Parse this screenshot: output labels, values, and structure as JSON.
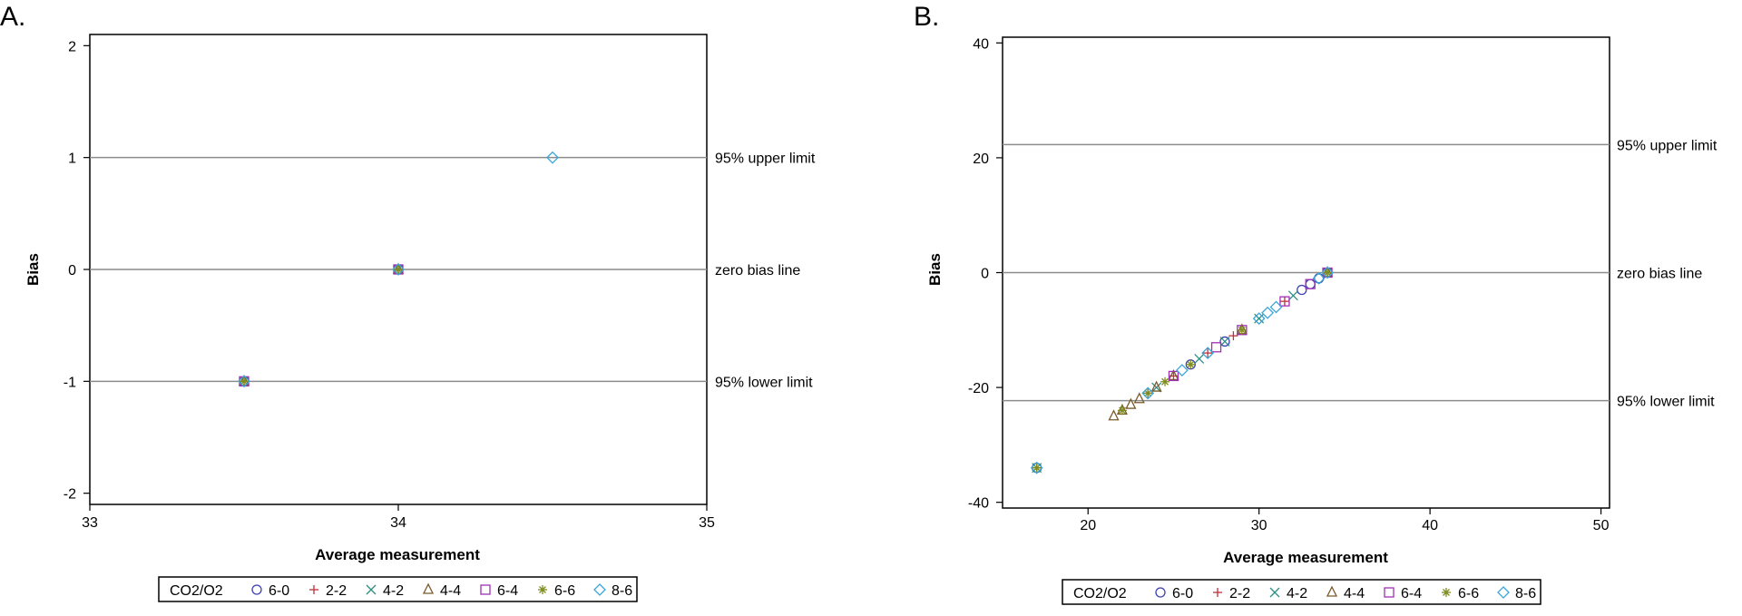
{
  "legend": {
    "title": "CO2/O2",
    "entries": [
      {
        "label": "6-0",
        "marker": "circle",
        "color": "#3b3fb2"
      },
      {
        "label": "2-2",
        "marker": "plus",
        "color": "#c0303a"
      },
      {
        "label": "4-2",
        "marker": "x",
        "color": "#2f8f83"
      },
      {
        "label": "4-4",
        "marker": "triangle",
        "color": "#7a5a2a"
      },
      {
        "label": "6-4",
        "marker": "square",
        "color": "#a12fb5"
      },
      {
        "label": "6-6",
        "marker": "star",
        "color": "#7f8d20"
      },
      {
        "label": "8-6",
        "marker": "diamond",
        "color": "#3aa6d8"
      }
    ]
  },
  "chart_data": [
    {
      "panel": "A.",
      "type": "scatter",
      "xlabel": "Average measurement",
      "ylabel": "Bias",
      "xlim": [
        33,
        35
      ],
      "ylim": [
        -2.1,
        2.1
      ],
      "xticks": [
        "33",
        "34",
        "35"
      ],
      "yticks": [
        "2",
        "1",
        "0",
        "-1",
        "-2"
      ],
      "xtick_values": [
        33,
        34,
        35
      ],
      "ytick_values": [
        2,
        1,
        0,
        -1,
        -2
      ],
      "reference_lines": [
        {
          "y": 1,
          "label": "95% upper limit"
        },
        {
          "y": 0,
          "label": "zero bias line"
        },
        {
          "y": -1,
          "label": "95% lower limit"
        }
      ],
      "series": [
        {
          "name": "6-0",
          "points": [
            [
              34,
              0
            ],
            [
              33.5,
              -1
            ]
          ]
        },
        {
          "name": "2-2",
          "points": [
            [
              34,
              0
            ],
            [
              33.5,
              -1
            ]
          ]
        },
        {
          "name": "4-2",
          "points": [
            [
              34,
              0
            ],
            [
              33.5,
              -1
            ]
          ]
        },
        {
          "name": "4-4",
          "points": [
            [
              34,
              0
            ],
            [
              33.5,
              -1
            ]
          ]
        },
        {
          "name": "6-4",
          "points": [
            [
              34,
              0
            ],
            [
              33.5,
              -1
            ]
          ]
        },
        {
          "name": "6-6",
          "points": [
            [
              34,
              0
            ],
            [
              33.5,
              -1
            ]
          ]
        },
        {
          "name": "8-6",
          "points": [
            [
              34,
              0
            ],
            [
              34.5,
              1
            ],
            [
              33.5,
              -1
            ]
          ]
        }
      ]
    },
    {
      "panel": "B.",
      "type": "scatter",
      "xlabel": "Average measurement",
      "ylabel": "Bias",
      "xlim": [
        15,
        50.5
      ],
      "ylim": [
        -41,
        41
      ],
      "xticks": [
        "20",
        "30",
        "40",
        "50"
      ],
      "yticks": [
        "40",
        "20",
        "0",
        "-20",
        "-40"
      ],
      "xtick_values": [
        20,
        30,
        40,
        50
      ],
      "ytick_values": [
        40,
        20,
        0,
        -20,
        -40
      ],
      "reference_lines": [
        {
          "y": 22.3,
          "label": "95% upper limit"
        },
        {
          "y": 0,
          "label": "zero bias line"
        },
        {
          "y": -22.3,
          "label": "95% lower limit"
        }
      ],
      "series": [
        {
          "name": "6-0",
          "points": [
            [
              17,
              -34
            ],
            [
              32.5,
              -3
            ],
            [
              33,
              -2
            ],
            [
              33.5,
              -1
            ],
            [
              34,
              0
            ],
            [
              28,
              -12
            ],
            [
              26,
              -16
            ]
          ]
        },
        {
          "name": "2-2",
          "points": [
            [
              17,
              -34
            ],
            [
              23.5,
              -21
            ],
            [
              25,
              -18
            ],
            [
              27,
              -14
            ],
            [
              28.5,
              -11
            ],
            [
              31.5,
              -5
            ],
            [
              34,
              0
            ]
          ]
        },
        {
          "name": "4-2",
          "points": [
            [
              17,
              -34
            ],
            [
              24,
              -20
            ],
            [
              26.5,
              -15
            ],
            [
              28,
              -12
            ],
            [
              30,
              -8
            ],
            [
              32,
              -4
            ],
            [
              34,
              0
            ]
          ]
        },
        {
          "name": "4-4",
          "points": [
            [
              21.5,
              -25
            ],
            [
              22,
              -24
            ],
            [
              22.5,
              -23
            ],
            [
              23,
              -22
            ],
            [
              24,
              -20
            ],
            [
              25,
              -18
            ],
            [
              29,
              -10
            ],
            [
              34,
              0
            ]
          ]
        },
        {
          "name": "6-4",
          "points": [
            [
              25,
              -18
            ],
            [
              27.5,
              -13
            ],
            [
              29,
              -10
            ],
            [
              31.5,
              -5
            ],
            [
              33,
              -2
            ],
            [
              34,
              0
            ]
          ]
        },
        {
          "name": "6-6",
          "points": [
            [
              17,
              -34
            ],
            [
              22,
              -24
            ],
            [
              23.5,
              -21
            ],
            [
              24.5,
              -19
            ],
            [
              26,
              -16
            ],
            [
              29,
              -10
            ],
            [
              34,
              0
            ]
          ]
        },
        {
          "name": "8-6",
          "points": [
            [
              17,
              -34
            ],
            [
              23.5,
              -21
            ],
            [
              25.5,
              -17
            ],
            [
              27,
              -14
            ],
            [
              30,
              -8
            ],
            [
              30.5,
              -7
            ],
            [
              31,
              -6
            ],
            [
              33.5,
              -1
            ],
            [
              34,
              0
            ]
          ]
        }
      ]
    }
  ]
}
